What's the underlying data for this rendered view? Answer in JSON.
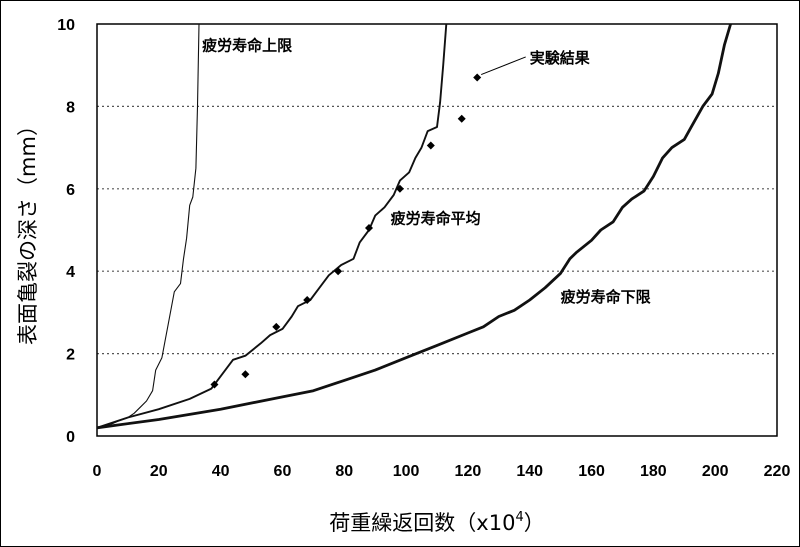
{
  "chart_data": {
    "type": "line",
    "xlabel": "荷重繰返回数（x10",
    "xlabel_sup": "4",
    "xlabel_close": "）",
    "ylabel": "表面亀裂の深さ（mm）",
    "xlim": [
      0,
      220
    ],
    "ylim": [
      0,
      10
    ],
    "xticks": [
      0,
      20,
      40,
      60,
      80,
      100,
      120,
      140,
      160,
      180,
      200,
      220
    ],
    "yticks": [
      0,
      2,
      4,
      6,
      8,
      10
    ],
    "grid": "horizontal dotted",
    "series": [
      {
        "name": "疲労寿命上限",
        "style": "thin",
        "points": [
          [
            0,
            0.2
          ],
          [
            5,
            0.3
          ],
          [
            8,
            0.4
          ],
          [
            10,
            0.45
          ],
          [
            12,
            0.55
          ],
          [
            14,
            0.7
          ],
          [
            16,
            0.85
          ],
          [
            18,
            1.1
          ],
          [
            19,
            1.6
          ],
          [
            21,
            1.9
          ],
          [
            22,
            2.3
          ],
          [
            23,
            2.7
          ],
          [
            24,
            3.1
          ],
          [
            25,
            3.5
          ],
          [
            27,
            3.7
          ],
          [
            28,
            4.3
          ],
          [
            29,
            4.8
          ],
          [
            30,
            5.6
          ],
          [
            31,
            5.8
          ],
          [
            32,
            6.5
          ],
          [
            32.5,
            8
          ],
          [
            33,
            10
          ]
        ]
      },
      {
        "name": "疲労寿命平均",
        "style": "medium",
        "points": [
          [
            0,
            0.2
          ],
          [
            10,
            0.45
          ],
          [
            20,
            0.65
          ],
          [
            30,
            0.9
          ],
          [
            37,
            1.15
          ],
          [
            40,
            1.45
          ],
          [
            44,
            1.85
          ],
          [
            48,
            1.95
          ],
          [
            53,
            2.25
          ],
          [
            56,
            2.45
          ],
          [
            60,
            2.6
          ],
          [
            63,
            2.9
          ],
          [
            65,
            3.15
          ],
          [
            69,
            3.3
          ],
          [
            72,
            3.6
          ],
          [
            75,
            3.9
          ],
          [
            79,
            4.15
          ],
          [
            83,
            4.3
          ],
          [
            85,
            4.7
          ],
          [
            88,
            5.0
          ],
          [
            90,
            5.35
          ],
          [
            93,
            5.55
          ],
          [
            96,
            5.85
          ],
          [
            98,
            6.2
          ],
          [
            101,
            6.4
          ],
          [
            103,
            6.75
          ],
          [
            105,
            7.0
          ],
          [
            107,
            7.4
          ],
          [
            110,
            7.5
          ],
          [
            111,
            8.1
          ],
          [
            112,
            9.0
          ],
          [
            113,
            10
          ]
        ]
      },
      {
        "name": "疲労寿命下限",
        "style": "thick",
        "points": [
          [
            0,
            0.2
          ],
          [
            20,
            0.4
          ],
          [
            40,
            0.65
          ],
          [
            60,
            0.95
          ],
          [
            70,
            1.1
          ],
          [
            80,
            1.35
          ],
          [
            90,
            1.6
          ],
          [
            100,
            1.9
          ],
          [
            110,
            2.2
          ],
          [
            120,
            2.5
          ],
          [
            125,
            2.65
          ],
          [
            130,
            2.9
          ],
          [
            135,
            3.05
          ],
          [
            140,
            3.3
          ],
          [
            145,
            3.6
          ],
          [
            150,
            3.95
          ],
          [
            153,
            4.3
          ],
          [
            155,
            4.45
          ],
          [
            160,
            4.75
          ],
          [
            163,
            5.0
          ],
          [
            167,
            5.2
          ],
          [
            170,
            5.55
          ],
          [
            173,
            5.75
          ],
          [
            177,
            5.95
          ],
          [
            180,
            6.3
          ],
          [
            183,
            6.75
          ],
          [
            186,
            7.0
          ],
          [
            190,
            7.2
          ],
          [
            193,
            7.6
          ],
          [
            196,
            8.0
          ],
          [
            199,
            8.3
          ],
          [
            201,
            8.8
          ],
          [
            203,
            9.5
          ],
          [
            205,
            10
          ]
        ]
      },
      {
        "name": "実験結果",
        "type": "scatter",
        "marker": "diamond",
        "points": [
          [
            38,
            1.25
          ],
          [
            48,
            1.5
          ],
          [
            58,
            2.65
          ],
          [
            68,
            3.3
          ],
          [
            78,
            4.0
          ],
          [
            88,
            5.05
          ],
          [
            98,
            6.0
          ],
          [
            108,
            7.05
          ],
          [
            118,
            7.7
          ],
          [
            123,
            8.7
          ]
        ]
      }
    ],
    "annotations": [
      {
        "text": "疲労寿命上限",
        "x": 34,
        "y": 9.5
      },
      {
        "text": "疲労寿命平均",
        "x": 95,
        "y": 5.3
      },
      {
        "text": "疲労寿命下限",
        "x": 150,
        "y": 3.4
      },
      {
        "text": "実験結果",
        "x": 140,
        "y": 9.2
      }
    ]
  }
}
